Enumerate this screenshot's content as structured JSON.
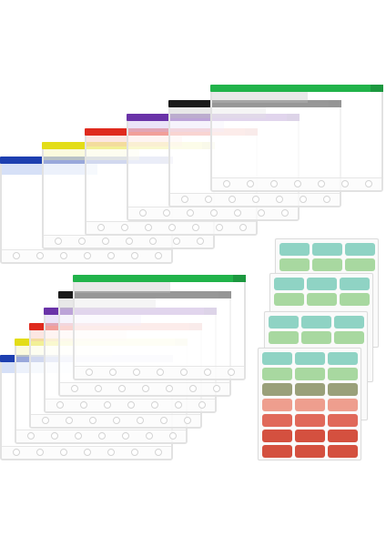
{
  "scene": {
    "description_colors": {
      "background": "#ffffff",
      "pouch_body": "#ffffff",
      "pouch_border": "#e2e2e2"
    },
    "pouch_sets": [
      {
        "name": "upper-set",
        "pouches": [
          {
            "zip_color": "#1d3fb0",
            "band_color": "#8aa6e8"
          },
          {
            "zip_color": "#e3dd18",
            "band_color": "#f4f0a0"
          },
          {
            "zip_color": "#df2a1e",
            "band_color": "#f6b6ad"
          },
          {
            "zip_color": "#6a33a8",
            "band_color": "#c6b3ea"
          },
          {
            "zip_color": "#1a1a1a",
            "band_color": "#bdbdbd"
          },
          {
            "zip_color": "#21b34a",
            "band_color": "#bfbfbf"
          }
        ]
      },
      {
        "name": "lower-set",
        "pouches": [
          {
            "zip_color": "#1d3fb0",
            "band_color": "#8aa6e8"
          },
          {
            "zip_color": "#e3dd18",
            "band_color": "#f4f0a0"
          },
          {
            "zip_color": "#df2a1e",
            "band_color": "#f6b6ad"
          },
          {
            "zip_color": "#6a33a8",
            "band_color": "#c6b3ea"
          },
          {
            "zip_color": "#1a1a1a",
            "band_color": "#bdbdbd"
          },
          {
            "zip_color": "#21b34a",
            "band_color": "#bfbfbf"
          }
        ]
      }
    ],
    "sticker_sheets": 4,
    "sticker_colors": [
      "#8fd3c4",
      "#a8d8a0",
      "#9aa07a",
      "#ee9e8e",
      "#e0695a",
      "#d4503f"
    ]
  }
}
